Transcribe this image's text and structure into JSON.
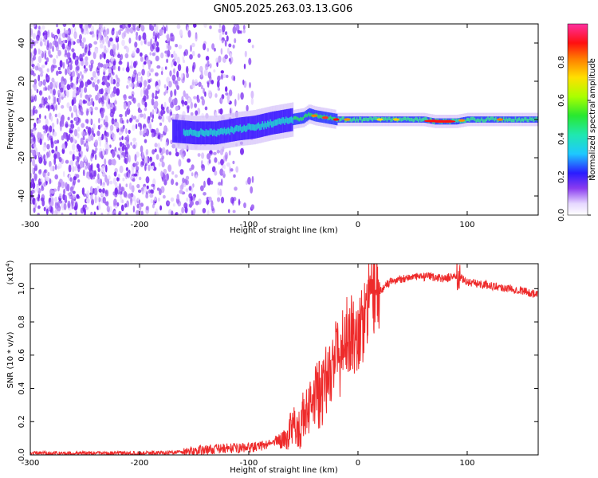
{
  "chart_data": [
    {
      "type": "heatmap",
      "title": "GN05.2025.263.03.13.G06",
      "xlabel": "Height of straight line (km)",
      "ylabel": "Frequency (Hz)",
      "xlim": [
        -300,
        165
      ],
      "ylim": [
        -50,
        50
      ],
      "xticks": [
        "-300",
        "-200",
        "-100",
        "0",
        "100"
      ],
      "xtick_values": [
        -300,
        -200,
        -100,
        0,
        100
      ],
      "yticks": [
        "-40",
        "-20",
        "0",
        "20",
        "40"
      ],
      "ytick_values": [
        -40,
        -20,
        0,
        20,
        40
      ],
      "colorbar": {
        "label": "Normalized spectral amplitude",
        "range": [
          0,
          1
        ],
        "ticks": [
          "0.0",
          "0.2",
          "0.4",
          "0.6",
          "0.8"
        ],
        "tick_values": [
          0.0,
          0.2,
          0.4,
          0.6,
          0.8
        ]
      },
      "features": {
        "noise_region_x": [
          -300,
          -95
        ],
        "signal_trace": {
          "x": [
            -170,
            -150,
            -130,
            -110,
            -95,
            -80,
            -70,
            -60,
            -50,
            -45,
            -40,
            -30,
            -20,
            -10,
            0,
            20,
            40,
            60,
            70,
            80,
            90,
            100,
            120,
            140,
            165
          ],
          "y": [
            -6,
            -7,
            -7,
            -5,
            -4,
            -2,
            -1,
            0,
            1,
            3,
            2,
            1,
            0,
            0,
            0,
            0,
            0,
            0,
            -1,
            -1,
            -1,
            0,
            0,
            0,
            0
          ]
        }
      }
    },
    {
      "type": "line",
      "title": "",
      "xlabel": "Height of straight line (km)",
      "ylabel": "SNR (10 * v/v)",
      "yscale_note": "(x10",
      "yscale_exp": "4",
      "xlim": [
        -300,
        165
      ],
      "ylim": [
        0,
        1.15
      ],
      "xticks": [
        "-300",
        "-200",
        "-100",
        "0",
        "100"
      ],
      "xtick_values": [
        -300,
        -200,
        -100,
        0,
        100
      ],
      "yticks": [
        "0.0",
        "0.2",
        "0.4",
        "0.6",
        "0.8",
        "1.0"
      ],
      "ytick_values": [
        0.0,
        0.2,
        0.4,
        0.6,
        0.8,
        1.0
      ],
      "series": [
        {
          "color": "#ee2a2a",
          "x": [
            -300,
            -250,
            -200,
            -170,
            -155,
            -140,
            -130,
            -120,
            -110,
            -100,
            -90,
            -80,
            -70,
            -62,
            -58,
            -55,
            -50,
            -45,
            -40,
            -35,
            -30,
            -25,
            -20,
            -15,
            -10,
            -5,
            0,
            5,
            10,
            15,
            20,
            25,
            30,
            40,
            50,
            60,
            70,
            80,
            90,
            95,
            100,
            110,
            120,
            130,
            140,
            150,
            160,
            165
          ],
          "y": [
            0.01,
            0.01,
            0.01,
            0.015,
            0.02,
            0.03,
            0.035,
            0.04,
            0.04,
            0.045,
            0.05,
            0.07,
            0.09,
            0.13,
            0.2,
            0.15,
            0.18,
            0.26,
            0.32,
            0.35,
            0.45,
            0.52,
            0.6,
            0.55,
            0.65,
            0.7,
            0.72,
            0.78,
            0.9,
            0.95,
            0.98,
            1.02,
            1.04,
            1.06,
            1.07,
            1.07,
            1.07,
            1.06,
            1.08,
            1.06,
            1.04,
            1.03,
            1.02,
            1.01,
            1.0,
            0.99,
            0.97,
            0.96
          ]
        }
      ]
    }
  ]
}
